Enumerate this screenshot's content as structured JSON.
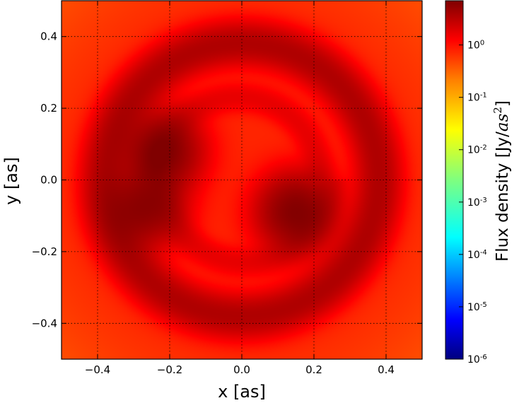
{
  "chart_data": {
    "type": "heatmap",
    "title": "",
    "xlabel": "x [as]",
    "ylabel": "y [as]",
    "xlim": [
      -0.5,
      0.5
    ],
    "ylim": [
      -0.5,
      0.5
    ],
    "xticks": [
      -0.4,
      -0.2,
      0.0,
      0.2,
      0.4
    ],
    "yticks": [
      -0.4,
      -0.2,
      0.0,
      0.2,
      0.4
    ],
    "xtick_labels": [
      "−0.4",
      "−0.2",
      "0.0",
      "0.2",
      "0.4"
    ],
    "ytick_labels": [
      "−0.4",
      "−0.2",
      "0.0",
      "0.2",
      "0.4"
    ],
    "grid": true,
    "colormap": "jet",
    "colorbar": {
      "label_prefix": "Flux density [Jy/",
      "label_math": "as",
      "label_exp": "2",
      "label_suffix": "]",
      "scale": "log",
      "range": [
        1e-06,
        7.0
      ],
      "tick_base": "10",
      "tick_exponents": [
        "-6",
        "-5",
        "-4",
        "-3",
        "-2",
        "-1",
        "0"
      ],
      "tick_values": [
        1e-06,
        1e-05,
        0.0001,
        0.001,
        0.01,
        0.1,
        1
      ]
    },
    "features": {
      "background_level": 0.55,
      "corner_level": 0.3,
      "outer_ring_radius": 0.38,
      "outer_ring_peak": 2.8,
      "bright_spots": [
        {
          "x": -0.22,
          "y": 0.08,
          "peak": 6.0
        },
        {
          "x": -0.27,
          "y": -0.08,
          "peak": 5.0
        },
        {
          "x": 0.15,
          "y": -0.09,
          "peak": 6.0
        }
      ]
    }
  },
  "colors": {
    "jet_stops": [
      "#00007f",
      "#0000ff",
      "#007fff",
      "#00ffff",
      "#7fff7f",
      "#ffff00",
      "#ff7f00",
      "#ff0000",
      "#7f0000"
    ]
  }
}
